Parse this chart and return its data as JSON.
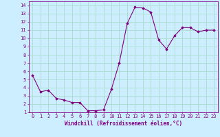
{
  "x": [
    0,
    1,
    2,
    3,
    4,
    5,
    6,
    7,
    8,
    9,
    10,
    11,
    12,
    13,
    14,
    15,
    16,
    17,
    18,
    19,
    20,
    21,
    22,
    23
  ],
  "y": [
    5.5,
    3.5,
    3.7,
    2.7,
    2.5,
    2.2,
    2.2,
    1.2,
    1.2,
    1.3,
    3.8,
    7.0,
    11.8,
    13.8,
    13.7,
    13.2,
    9.8,
    8.7,
    10.3,
    11.3,
    11.3,
    10.8,
    11.0,
    11.0
  ],
  "line_color": "#800080",
  "marker": "D",
  "marker_size": 1.8,
  "bg_color": "#cceeff",
  "grid_color": "#aaddcc",
  "xlabel": "Windchill (Refroidissement éolien,°C)",
  "xlim": [
    -0.5,
    23.5
  ],
  "ylim": [
    1,
    14.5
  ],
  "xticks": [
    0,
    1,
    2,
    3,
    4,
    5,
    6,
    7,
    8,
    9,
    10,
    11,
    12,
    13,
    14,
    15,
    16,
    17,
    18,
    19,
    20,
    21,
    22,
    23
  ],
  "yticks": [
    1,
    2,
    3,
    4,
    5,
    6,
    7,
    8,
    9,
    10,
    11,
    12,
    13,
    14
  ],
  "tick_color": "#800080",
  "label_color": "#800080",
  "font_family": "monospace",
  "tick_fontsize": 5,
  "xlabel_fontsize": 5.5
}
